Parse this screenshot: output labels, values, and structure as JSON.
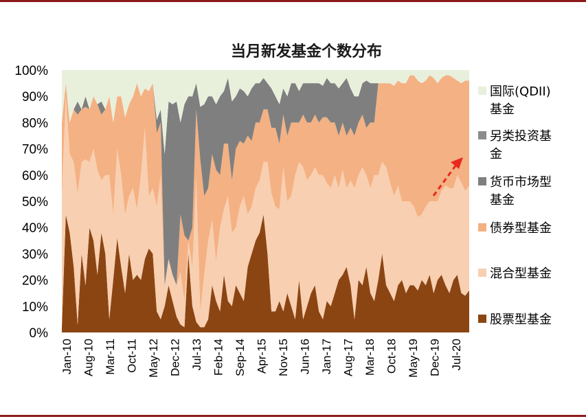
{
  "chart_data": {
    "type": "area",
    "title": "当月新发基金个数分布",
    "stacked": true,
    "percent": true,
    "ylim": [
      0,
      100
    ],
    "y_ticks": [
      "0%",
      "10%",
      "20%",
      "30%",
      "40%",
      "50%",
      "60%",
      "70%",
      "80%",
      "90%",
      "100%"
    ],
    "x_ticks": [
      "Jan-10",
      "Aug-10",
      "Mar-11",
      "Oct-11",
      "May-12",
      "Dec-12",
      "Jul-13",
      "Feb-14",
      "Sep-14",
      "Apr-15",
      "Nov-15",
      "Jun-16",
      "Jan-17",
      "Aug-17",
      "Mar-18",
      "Oct-18",
      "May-19",
      "Dec-19",
      "Jul-20"
    ],
    "x_range": [
      "Jan-10",
      "Aug-20"
    ],
    "legend_position": "right",
    "annotation": "red dashed upward arrow over bond funds, 2019–2020",
    "series": [
      {
        "name": "股票型基金",
        "color": "#8b4513",
        "values": [
          2,
          45,
          38,
          25,
          3,
          30,
          18,
          40,
          35,
          22,
          38,
          30,
          5,
          20,
          36,
          25,
          15,
          30,
          20,
          22,
          20,
          28,
          32,
          30,
          8,
          5,
          10,
          18,
          12,
          6,
          3,
          2,
          30,
          10,
          4,
          2,
          2,
          5,
          18,
          12,
          8,
          22,
          12,
          10,
          18,
          15,
          12,
          25,
          30,
          35,
          38,
          45,
          30,
          8,
          8,
          12,
          8,
          15,
          10,
          5,
          20,
          5,
          10,
          15,
          18,
          8,
          5,
          12,
          10,
          15,
          20,
          22,
          25,
          18,
          5,
          20,
          18,
          25,
          15,
          12,
          20,
          30,
          18,
          15,
          12,
          18,
          20,
          15,
          18,
          18,
          16,
          20,
          18,
          22,
          15,
          20,
          22,
          18,
          15,
          20,
          22,
          15,
          14,
          16
        ]
      },
      {
        "name": "混合型基金",
        "color": "#f8cfb0",
        "values": [
          50,
          45,
          30,
          40,
          50,
          35,
          48,
          25,
          35,
          40,
          20,
          30,
          55,
          25,
          34,
          35,
          30,
          22,
          35,
          25,
          40,
          50,
          20,
          25,
          40,
          55,
          8,
          10,
          10,
          12,
          20,
          10,
          5,
          15,
          55,
          6,
          20,
          30,
          25,
          15,
          32,
          25,
          40,
          28,
          22,
          33,
          40,
          20,
          18,
          20,
          20,
          20,
          35,
          45,
          40,
          35,
          55,
          35,
          42,
          55,
          45,
          58,
          48,
          45,
          45,
          52,
          55,
          45,
          45,
          45,
          35,
          40,
          30,
          40,
          50,
          40,
          45,
          35,
          40,
          48,
          40,
          35,
          45,
          42,
          40,
          38,
          30,
          35,
          32,
          30,
          28,
          25,
          30,
          28,
          35,
          30,
          32,
          38,
          40,
          35,
          38,
          42,
          40,
          40
        ]
      },
      {
        "name": "债券型基金",
        "color": "#f4b183",
        "values": [
          28,
          5,
          12,
          20,
          30,
          20,
          20,
          20,
          20,
          25,
          25,
          25,
          30,
          35,
          20,
          30,
          37,
          35,
          35,
          48,
          30,
          15,
          40,
          40,
          28,
          20,
          0,
          0,
          0,
          0,
          22,
          25,
          0,
          15,
          26,
          58,
          30,
          20,
          25,
          35,
          20,
          25,
          20,
          20,
          30,
          25,
          20,
          30,
          25,
          25,
          22,
          20,
          20,
          25,
          30,
          25,
          20,
          25,
          28,
          20,
          15,
          20,
          22,
          20,
          20,
          20,
          22,
          25,
          25,
          20,
          20,
          18,
          20,
          20,
          20,
          20,
          20,
          18,
          25,
          20,
          35,
          30,
          32,
          38,
          42,
          40,
          45,
          45,
          48,
          50,
          52,
          50,
          48,
          48,
          47,
          45,
          43,
          42,
          43,
          42,
          36,
          38,
          42,
          40
        ]
      },
      {
        "name": "货币市场型基金",
        "color": "#7f7f7f",
        "values": [
          0,
          0,
          0,
          0,
          5,
          0,
          4,
          0,
          0,
          0,
          5,
          0,
          0,
          0,
          0,
          0,
          0,
          0,
          0,
          0,
          0,
          0,
          0,
          0,
          5,
          5,
          50,
          60,
          65,
          70,
          35,
          50,
          55,
          50,
          10,
          20,
          35,
          35,
          22,
          25,
          30,
          20,
          25,
          30,
          20,
          20,
          20,
          15,
          20,
          15,
          15,
          12,
          10,
          15,
          12,
          15,
          10,
          15,
          15,
          15,
          12,
          12,
          15,
          15,
          12,
          15,
          12,
          15,
          15,
          15,
          18,
          15,
          22,
          15,
          15,
          10,
          12,
          18,
          15,
          15,
          0,
          0,
          0,
          0,
          0,
          0,
          0,
          0,
          0,
          0,
          0,
          0,
          0,
          0,
          0,
          0,
          0,
          0,
          0,
          0,
          0,
          0,
          0,
          0
        ]
      },
      {
        "name": "另类投资基金",
        "color": "#8c8c8c",
        "values": [
          0,
          0,
          0,
          0,
          0,
          0,
          0,
          0,
          0,
          0,
          0,
          0,
          0,
          0,
          0,
          0,
          0,
          0,
          0,
          0,
          0,
          0,
          0,
          0,
          0,
          0,
          0,
          0,
          0,
          0,
          0,
          0,
          0,
          0,
          0,
          0,
          0,
          0,
          0,
          0,
          0,
          0,
          0,
          0,
          0,
          0,
          0,
          0,
          0,
          0,
          0,
          0,
          0,
          0,
          0,
          0,
          0,
          0,
          0,
          0,
          0,
          0,
          0,
          0,
          0,
          0,
          0,
          0,
          0,
          0,
          0,
          0,
          0,
          0,
          0,
          0,
          0,
          0,
          0,
          0,
          0,
          0,
          0,
          0,
          0,
          0,
          0,
          0,
          0,
          0,
          0,
          0,
          0,
          0,
          0,
          0,
          0,
          0,
          0,
          0,
          0,
          0,
          0,
          0
        ]
      },
      {
        "name": "国际(QDII)基金",
        "color": "#e8f0dc",
        "values": [
          20,
          5,
          20,
          15,
          12,
          15,
          10,
          15,
          10,
          13,
          12,
          15,
          10,
          20,
          10,
          10,
          18,
          13,
          10,
          5,
          10,
          7,
          8,
          5,
          19,
          15,
          32,
          12,
          13,
          12,
          20,
          13,
          10,
          10,
          5,
          14,
          13,
          10,
          10,
          13,
          10,
          8,
          3,
          12,
          10,
          7,
          8,
          10,
          7,
          5,
          5,
          3,
          5,
          7,
          10,
          13,
          7,
          10,
          5,
          5,
          8,
          5,
          5,
          5,
          5,
          5,
          6,
          3,
          5,
          5,
          7,
          5,
          3,
          7,
          10,
          10,
          5,
          4,
          5,
          5,
          5,
          5,
          5,
          5,
          6,
          4,
          5,
          5,
          2,
          2,
          4,
          5,
          4,
          2,
          3,
          5,
          3,
          2,
          2,
          3,
          4,
          5,
          4,
          4
        ]
      }
    ]
  },
  "legend": {
    "items": [
      {
        "line1": "国际(QDII)",
        "line2": "基金",
        "color": "#e8f0dc"
      },
      {
        "line1": "另类投资基",
        "line2": "金",
        "color": "#8c8c8c"
      },
      {
        "line1": "货币市场型",
        "line2": "基金",
        "color": "#7f7f7f"
      },
      {
        "line1": "债券型基金",
        "line2": "",
        "color": "#f4b183"
      },
      {
        "line1": "混合型基金",
        "line2": "",
        "color": "#f8cfb0"
      },
      {
        "line1": "股票型基金",
        "line2": "",
        "color": "#8b4513"
      }
    ]
  },
  "arrow_color": "#e8291c"
}
